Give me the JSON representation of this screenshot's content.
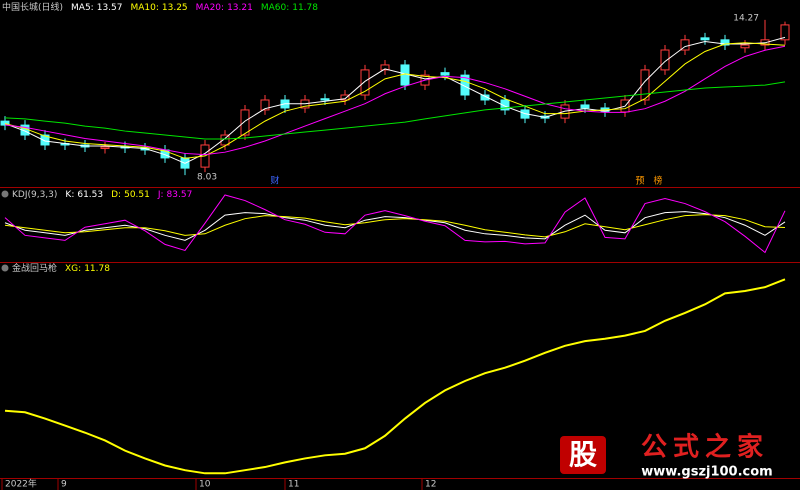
{
  "chart_data": [
    {
      "type": "candlestick",
      "title": "中国长城(日线)",
      "candles": {
        "open": [
          10.2,
          10.04,
          9.64,
          9.3,
          9.24,
          9.1,
          9.18,
          9.12,
          9.04,
          8.72,
          8.35,
          9.24,
          9.64,
          10.65,
          11.05,
          10.73,
          11.1,
          11.05,
          11.25,
          12.26,
          12.46,
          11.65,
          12.15,
          12.05,
          11.25,
          11.05,
          10.65,
          10.4,
          10.32,
          10.85,
          10.73,
          10.57,
          11.05,
          12.26,
          13.06,
          13.55,
          13.47,
          13.15,
          13.26,
          13.47
        ],
        "high": [
          10.4,
          10.24,
          9.84,
          9.5,
          9.44,
          9.36,
          9.38,
          9.32,
          9.24,
          8.92,
          9.44,
          9.84,
          10.85,
          11.25,
          11.25,
          11.25,
          11.3,
          11.45,
          12.46,
          12.66,
          12.66,
          12.25,
          12.35,
          12.25,
          11.45,
          11.25,
          10.85,
          10.6,
          11.05,
          11.05,
          10.93,
          11.25,
          12.46,
          13.26,
          13.67,
          13.75,
          13.67,
          13.46,
          14.27,
          14.2
        ],
        "low": [
          9.84,
          9.44,
          9.04,
          9.04,
          8.96,
          8.9,
          8.92,
          8.84,
          8.52,
          8.03,
          8.15,
          9.04,
          9.44,
          10.45,
          10.53,
          10.53,
          10.85,
          10.85,
          11.05,
          12.06,
          11.45,
          11.45,
          11.85,
          11.05,
          10.85,
          10.45,
          10.12,
          10.12,
          10.12,
          10.53,
          10.37,
          10.37,
          10.85,
          12.06,
          12.86,
          13.27,
          13.06,
          12.95,
          13.06,
          13.27
        ],
        "close": [
          10.04,
          9.64,
          9.24,
          9.24,
          9.16,
          9.16,
          9.12,
          9.04,
          8.72,
          8.31,
          9.24,
          9.64,
          10.65,
          11.05,
          10.73,
          11.05,
          11.05,
          11.25,
          12.26,
          12.46,
          11.65,
          12.05,
          12.05,
          11.25,
          11.05,
          10.65,
          10.32,
          10.32,
          10.85,
          10.73,
          10.57,
          11.05,
          12.26,
          13.06,
          13.47,
          13.47,
          13.26,
          13.26,
          13.47,
          14.07
        ]
      },
      "up_color": "#ff3c3c",
      "down_color": "#54fcfc",
      "series": [
        {
          "name": "MA5:",
          "color": "#ffffff",
          "values": [
            10.1,
            9.8,
            9.4,
            9.3,
            9.2,
            9.2,
            9.15,
            9.1,
            8.85,
            8.5,
            8.9,
            9.5,
            10.2,
            10.7,
            10.9,
            10.9,
            11.0,
            11.1,
            11.8,
            12.3,
            12.1,
            11.9,
            12.0,
            11.6,
            11.2,
            10.8,
            10.5,
            10.35,
            10.6,
            10.7,
            10.6,
            10.8,
            11.8,
            12.6,
            13.2,
            13.4,
            13.3,
            13.3,
            13.35,
            13.57
          ]
        },
        {
          "name": "MA10:",
          "color": "#ffff00",
          "values": [
            10.1,
            9.9,
            9.6,
            9.4,
            9.3,
            9.25,
            9.2,
            9.15,
            9.0,
            8.7,
            8.8,
            9.2,
            9.7,
            10.2,
            10.6,
            10.8,
            10.9,
            11.0,
            11.4,
            11.9,
            12.1,
            12.0,
            11.95,
            11.8,
            11.5,
            11.1,
            10.8,
            10.5,
            10.5,
            10.6,
            10.65,
            10.7,
            11.1,
            11.8,
            12.5,
            13.0,
            13.3,
            13.35,
            13.3,
            13.25
          ]
        },
        {
          "name": "MA20:",
          "color": "#ff00ff",
          "values": [
            10.05,
            9.95,
            9.8,
            9.65,
            9.5,
            9.4,
            9.3,
            9.2,
            9.05,
            8.9,
            8.85,
            8.95,
            9.15,
            9.4,
            9.7,
            10.0,
            10.3,
            10.6,
            10.9,
            11.3,
            11.6,
            11.85,
            12.0,
            11.95,
            11.75,
            11.5,
            11.2,
            10.9,
            10.7,
            10.6,
            10.55,
            10.55,
            10.7,
            11.0,
            11.4,
            11.9,
            12.4,
            12.8,
            13.05,
            13.21
          ]
        },
        {
          "name": "MA60:",
          "color": "#00e600",
          "values": [
            10.33,
            10.29,
            10.2,
            10.12,
            10.0,
            9.92,
            9.8,
            9.72,
            9.64,
            9.56,
            9.48,
            9.48,
            9.52,
            9.6,
            9.68,
            9.76,
            9.84,
            9.92,
            10.0,
            10.08,
            10.16,
            10.29,
            10.41,
            10.53,
            10.65,
            10.73,
            10.81,
            10.89,
            10.97,
            11.05,
            11.13,
            11.21,
            11.29,
            11.37,
            11.45,
            11.53,
            11.57,
            11.61,
            11.65,
            11.78
          ]
        }
      ],
      "ylim": [
        7.55,
        14.75
      ],
      "markers": [
        "财",
        "预",
        "榜"
      ]
    },
    {
      "type": "line",
      "title": "KDJ(9,3,3)",
      "series": [
        {
          "name": "K:",
          "color": "#ffffff",
          "values": [
            60,
            45,
            40,
            35,
            45,
            50,
            55,
            48,
            35,
            25,
            45,
            75,
            80,
            78,
            70,
            65,
            55,
            50,
            65,
            72,
            70,
            65,
            60,
            45,
            38,
            35,
            30,
            28,
            55,
            75,
            45,
            40,
            70,
            80,
            82,
            78,
            70,
            55,
            35,
            61.53
          ]
        },
        {
          "name": "D:",
          "color": "#ffff00",
          "values": [
            55,
            50,
            45,
            40,
            42,
            46,
            50,
            50,
            44,
            35,
            38,
            55,
            68,
            74,
            72,
            69,
            62,
            56,
            60,
            66,
            68,
            66,
            63,
            55,
            46,
            41,
            36,
            32,
            42,
            58,
            52,
            46,
            56,
            66,
            74,
            76,
            74,
            66,
            52,
            50.51
          ]
        },
        {
          "name": "J:",
          "color": "#ff00ff",
          "values": [
            70,
            35,
            30,
            25,
            51,
            58,
            65,
            44,
            17,
            5,
            59,
            115,
            104,
            86,
            66,
            57,
            41,
            38,
            75,
            84,
            74,
            63,
            54,
            25,
            22,
            23,
            18,
            20,
            81,
            109,
            31,
            28,
            98,
            108,
            98,
            82,
            62,
            33,
            1,
            83.57
          ]
        }
      ],
      "ylim": [
        -10,
        115
      ]
    },
    {
      "type": "line",
      "title": "金战回马枪",
      "series": [
        {
          "name": "XG:",
          "color": "#ffff00",
          "values": [
            10.1,
            10.08,
            10.0,
            9.91,
            9.82,
            9.72,
            9.59,
            9.49,
            9.4,
            9.34,
            9.3,
            9.3,
            9.34,
            9.38,
            9.44,
            9.49,
            9.53,
            9.55,
            9.62,
            9.78,
            10.0,
            10.2,
            10.36,
            10.48,
            10.58,
            10.65,
            10.74,
            10.84,
            10.93,
            10.99,
            11.02,
            11.06,
            11.12,
            11.25,
            11.35,
            11.46,
            11.6,
            11.63,
            11.68,
            11.78
          ]
        }
      ],
      "ylim": [
        9.24,
        11.95
      ],
      "x_labels": [
        "2022年",
        "9",
        "10",
        "11",
        "12"
      ]
    }
  ],
  "watermark": {
    "icon": "股",
    "text": "公式之家",
    "url": "www.gszj100.com"
  }
}
